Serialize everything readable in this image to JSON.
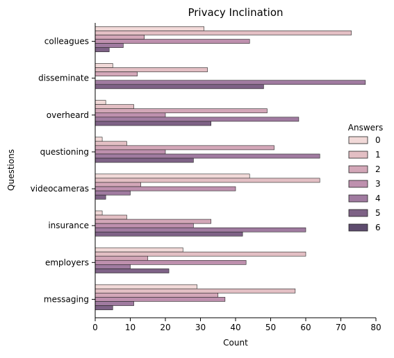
{
  "chart_data": {
    "type": "bar",
    "orientation": "horizontal",
    "title": "Privacy Inclination",
    "xlabel": "Count",
    "ylabel": "Questions",
    "xlim": [
      0,
      80
    ],
    "xticks": [
      0,
      10,
      20,
      30,
      40,
      50,
      60,
      70,
      80
    ],
    "grid": false,
    "legend": {
      "title": "Answers",
      "placement": "right"
    },
    "categories": [
      "colleagues",
      "disseminate",
      "overheard",
      "questioning",
      "videocameras",
      "insurance",
      "employers",
      "messaging"
    ],
    "series": [
      {
        "name": "0",
        "color": "#f1d9d8",
        "values": [
          31,
          5,
          3,
          2,
          44,
          2,
          25,
          29
        ]
      },
      {
        "name": "1",
        "color": "#e3bfc4",
        "values": [
          73,
          32,
          11,
          9,
          64,
          9,
          60,
          57
        ]
      },
      {
        "name": "2",
        "color": "#d3a7b8",
        "values": [
          14,
          12,
          49,
          51,
          13,
          33,
          15,
          35
        ]
      },
      {
        "name": "3",
        "color": "#be90ae",
        "values": [
          44,
          0,
          20,
          20,
          40,
          28,
          43,
          37
        ]
      },
      {
        "name": "4",
        "color": "#a07ba0",
        "values": [
          8,
          77,
          58,
          64,
          10,
          60,
          10,
          11
        ]
      },
      {
        "name": "5",
        "color": "#7e6286",
        "values": [
          4,
          48,
          33,
          28,
          3,
          42,
          21,
          5
        ]
      },
      {
        "name": "6",
        "color": "#5e4c6e",
        "values": [
          0,
          0,
          0,
          0,
          0,
          0,
          0,
          0
        ]
      }
    ]
  }
}
